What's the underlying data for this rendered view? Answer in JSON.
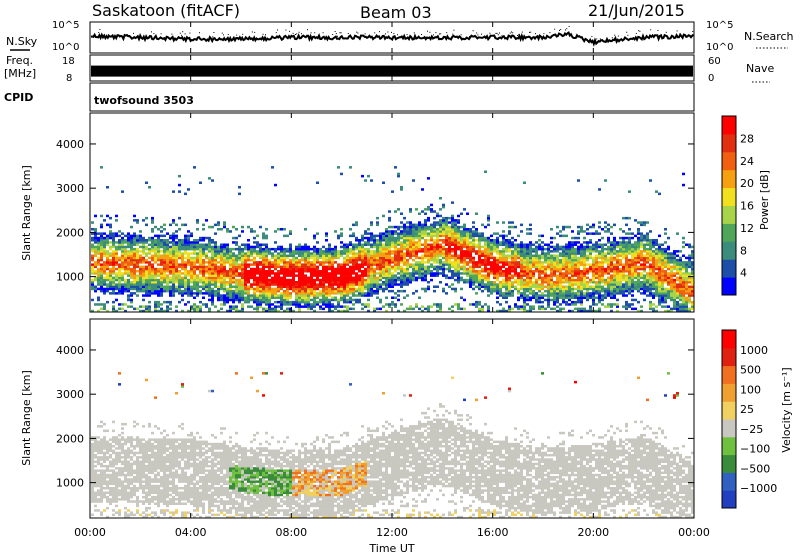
{
  "header": {
    "station": "Saskatoon (fitACF)",
    "beam": "Beam 03",
    "date": "21/Jun/2015"
  },
  "noise_panel": {
    "left_label": "N.Sky",
    "left_ticks": [
      "10^5",
      "10^0"
    ],
    "right_label": "N.Search",
    "right_ticks": [
      "10^5",
      "10^0"
    ]
  },
  "freq_panel": {
    "label_line1": "Freq.",
    "label_line2": "[MHz]",
    "left_ticks": [
      "18",
      "8"
    ],
    "right_label": "Nave",
    "right_ticks": [
      "60",
      "0"
    ]
  },
  "cpid_panel": {
    "label": "CPID",
    "program": "twofsound 3503"
  },
  "colors": {
    "power": [
      "#0000ff",
      "#1e4fa8",
      "#3c8c7c",
      "#4fa55a",
      "#a8d44a",
      "#f0e020",
      "#f5a010",
      "#f06010",
      "#e03010",
      "#ff0000"
    ],
    "velocity": [
      "#2040c0",
      "#3060c0",
      "#3a8c3a",
      "#70c040",
      "#c8c8c0",
      "#f0d060",
      "#f0a030",
      "#f07020",
      "#e02010",
      "#ff0000"
    ],
    "ground_scatter": "#c8c8c0"
  },
  "chart_data": [
    {
      "type": "heatmap",
      "name": "power",
      "ylabel": "Slant Range [km]",
      "yticks": [
        1000,
        2000,
        3000,
        4000
      ],
      "ylim": [
        200,
        4700
      ],
      "xlim_hours": [
        0,
        24
      ],
      "colorbar": {
        "label": "Power [dB]",
        "ticks": [
          4,
          8,
          12,
          16,
          20,
          24,
          28
        ],
        "range": [
          0,
          32
        ]
      },
      "echo_band": {
        "x_hours": [
          0,
          2,
          4,
          6,
          8,
          10,
          12,
          14,
          16,
          18,
          20,
          22,
          24
        ],
        "center_km": [
          1300,
          1250,
          1200,
          1050,
          950,
          1000,
          1400,
          1700,
          1200,
          1000,
          1100,
          1300,
          600
        ]
      }
    },
    {
      "type": "heatmap",
      "name": "velocity",
      "ylabel": "Slant Range [km]",
      "yticks": [
        1000,
        2000,
        3000,
        4000
      ],
      "ylim": [
        200,
        4700
      ],
      "xlim_hours": [
        0,
        24
      ],
      "colorbar": {
        "label": "Velocity [m s⁻¹]",
        "ticks": [
          "1000",
          "500",
          "100",
          "25",
          "−25",
          "−100",
          "−500",
          "−1000"
        ]
      }
    },
    {
      "type": "line",
      "name": "noise",
      "x_hours": [
        0,
        2,
        4,
        6,
        8,
        10,
        12,
        14,
        16,
        18,
        19,
        20,
        22,
        24
      ],
      "sky": [
        0.55,
        0.5,
        0.45,
        0.45,
        0.5,
        0.5,
        0.5,
        0.5,
        0.5,
        0.5,
        0.6,
        0.35,
        0.5,
        0.55
      ]
    },
    {
      "type": "bar",
      "name": "frequency",
      "ylim_mhz": [
        8,
        18
      ],
      "value_mhz": 12
    }
  ],
  "x_axis": {
    "label": "Time UT",
    "ticks": [
      "00:00",
      "04:00",
      "08:00",
      "12:00",
      "16:00",
      "20:00",
      "00:00"
    ]
  }
}
